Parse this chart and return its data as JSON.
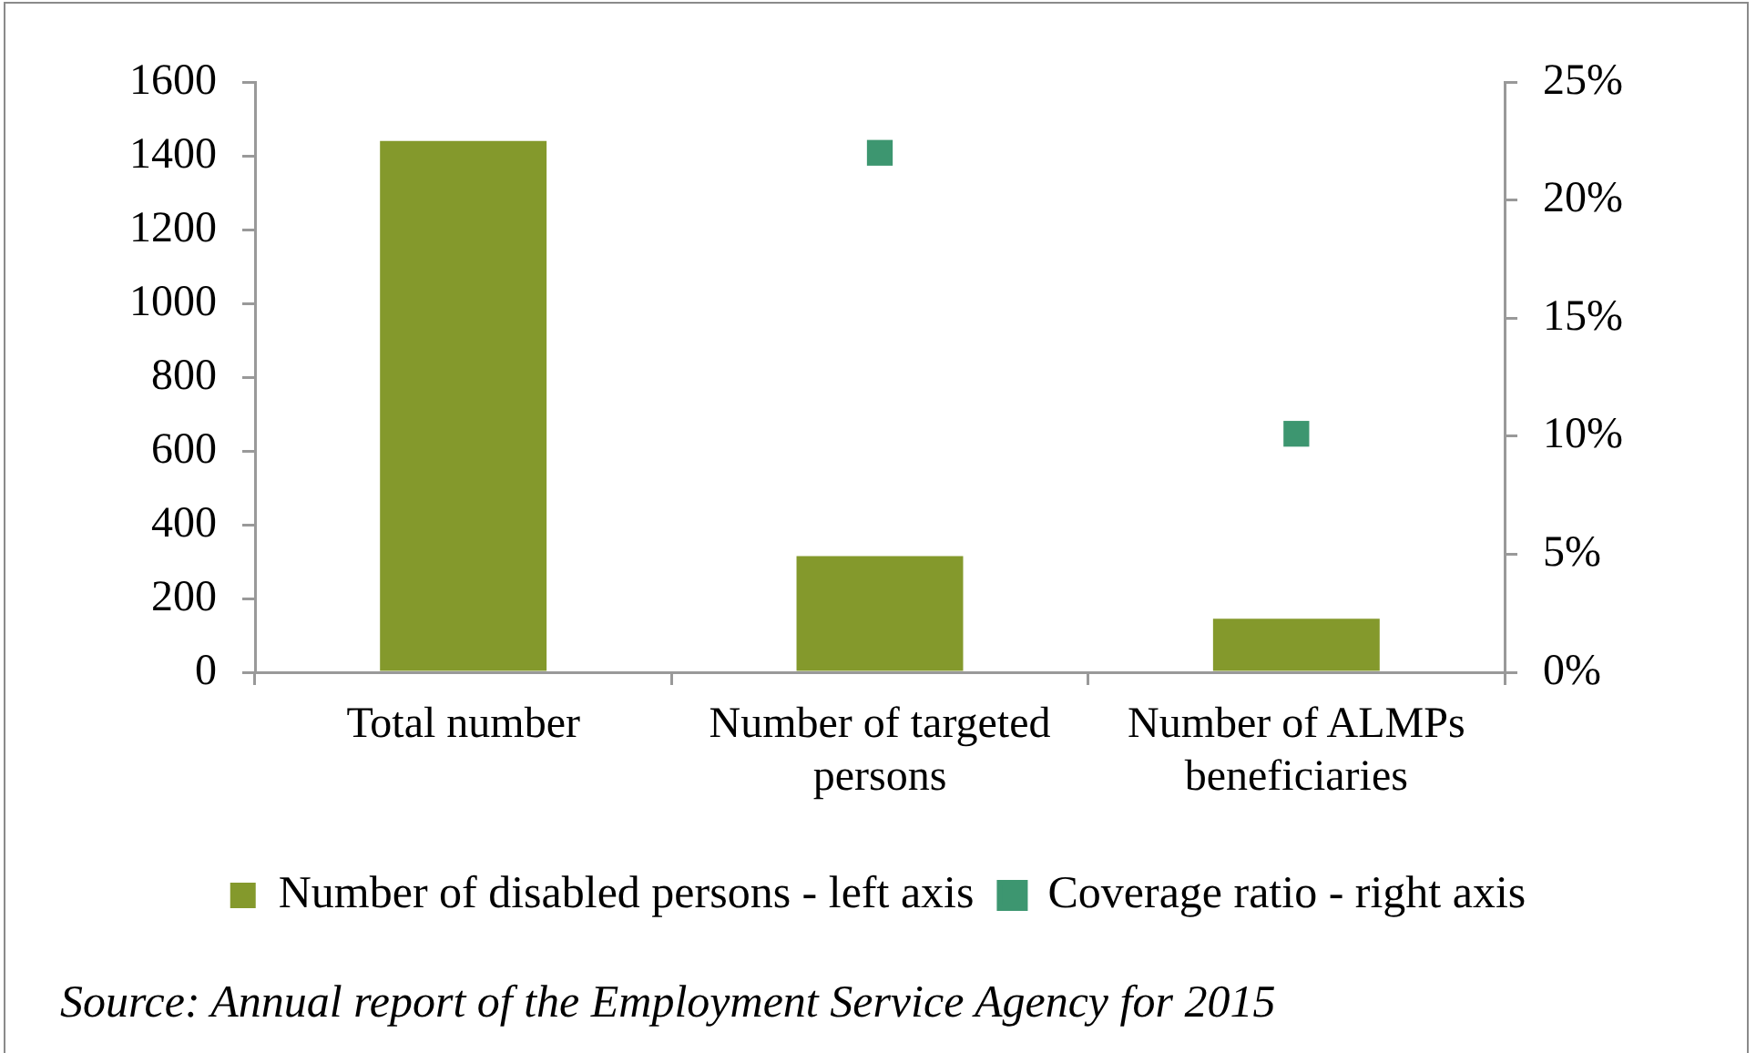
{
  "chart_data": {
    "type": "bar",
    "categories": [
      "Total number",
      "Number of targeted persons",
      "Number of ALMPs beneficiaries"
    ],
    "series": [
      {
        "name": "Number of disabled persons - left axis",
        "color": "#84992c",
        "values": [
          1440,
          315,
          145
        ]
      },
      {
        "name": "Coverage ratio - right axis",
        "type": "scatter",
        "axis": "y2",
        "color": "#3d9670",
        "values": [
          null,
          22,
          10.1
        ]
      }
    ],
    "marker": "square",
    "ylim": [
      0,
      1600
    ],
    "yticks": [
      0,
      200,
      400,
      600,
      800,
      1000,
      1200,
      1400,
      1600
    ],
    "y2lim": [
      0,
      25
    ],
    "y2ticks": [
      {
        "value": 0,
        "label": "0%"
      },
      {
        "value": 5,
        "label": "5%"
      },
      {
        "value": 10,
        "label": "10%"
      },
      {
        "value": 15,
        "label": "15%"
      },
      {
        "value": 20,
        "label": "20%"
      },
      {
        "value": 25,
        "label": "25%"
      }
    ],
    "legend": "bottom",
    "annotations": [
      "Source: Annual report of the Employment Service Agency for 2015"
    ]
  }
}
